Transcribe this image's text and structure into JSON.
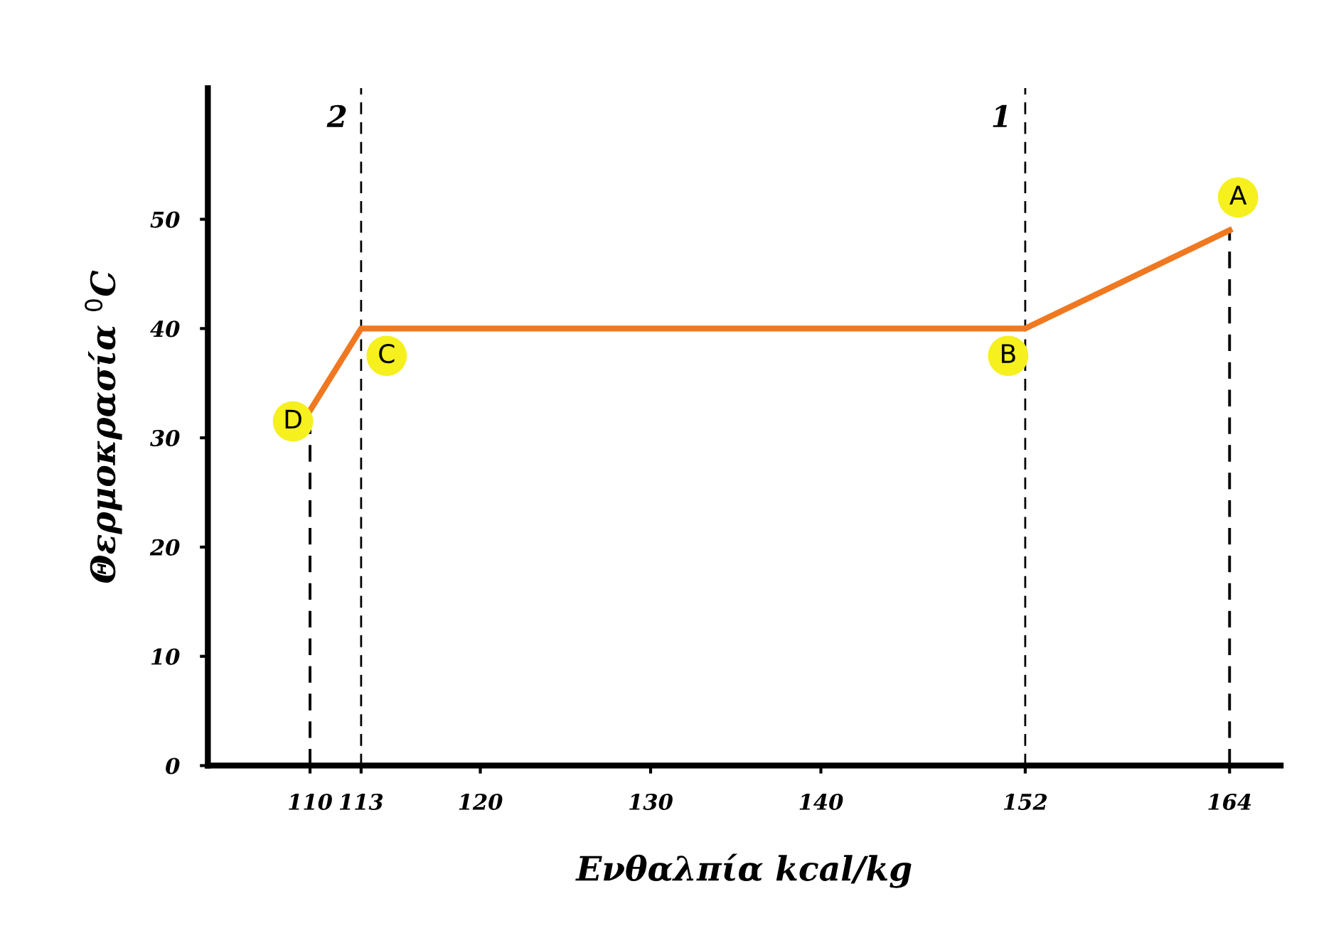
{
  "chart_data": {
    "type": "line",
    "xlabel": "Ενθαλπία kcal/kg",
    "ylabel": "Θερμοκρασία $^{0}$C",
    "series": [
      {
        "color": "#f07820",
        "x": [
          110,
          113,
          152,
          164
        ],
        "values": [
          32.5,
          40,
          40,
          49
        ]
      },
      {
        "color": "#000000",
        "x": [
          110,
          110
        ],
        "values": [
          0,
          32.5
        ],
        "line_style": "dashed"
      },
      {
        "color": "#000000",
        "x": [
          164,
          164
        ],
        "values": [
          0,
          49
        ],
        "line_style": "dashed"
      }
    ],
    "xlim": [
      104,
      167
    ],
    "ylim": [
      0,
      62
    ],
    "xticks": [
      110,
      113,
      120,
      130,
      140,
      152,
      164
    ],
    "yticks": [
      0,
      10,
      20,
      30,
      40,
      50
    ],
    "ref_lines": [
      {
        "axis": "x",
        "value": 113,
        "color": "#000000",
        "line_style": "dashed"
      },
      {
        "axis": "x",
        "value": 152,
        "color": "#000000",
        "line_style": "dashed"
      }
    ],
    "annotations": [
      "2",
      "1",
      {
        "text": "D",
        "x": 109,
        "y": 31.5
      },
      {
        "text": "C",
        "x": 114.5,
        "y": 37.5
      },
      {
        "text": "B",
        "x": 151,
        "y": 37.5
      },
      {
        "text": "A",
        "x": 164.5,
        "y": 52
      }
    ],
    "grid": false,
    "legend": false,
    "marker": "none"
  }
}
